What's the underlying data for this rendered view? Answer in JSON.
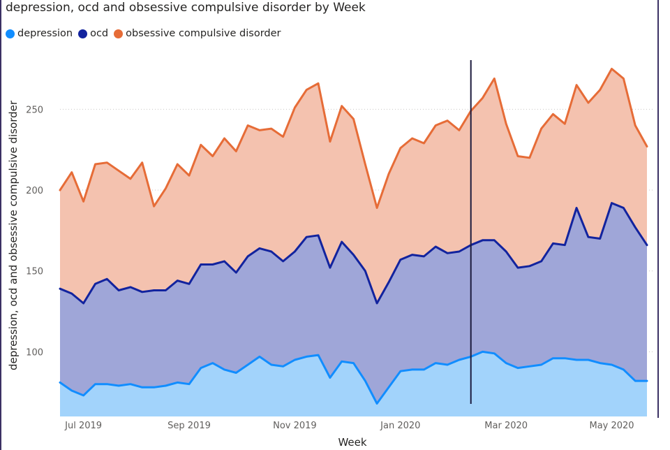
{
  "colors": {
    "depression": "#118dff",
    "depression_fill": "#a2d3fb",
    "ocd": "#12239e",
    "ocd_fill": "#9fa6d8",
    "obsessive": "#e66c37",
    "obsessive_fill": "#f4c2af"
  },
  "chart_data": {
    "type": "area",
    "title": "depression, ocd and obsessive compulsive disorder by Week",
    "xlabel": "Week",
    "ylabel": "depression, ocd and obsessive compulsive disorder",
    "ylim": [
      60,
      283
    ],
    "yticks": [
      100,
      150,
      200,
      250
    ],
    "grid": true,
    "legend_position": "top-left",
    "xticks": [
      {
        "label": "Jul 2019",
        "week": 2
      },
      {
        "label": "Sep 2019",
        "week": 11
      },
      {
        "label": "Nov 2019",
        "week": 20
      },
      {
        "label": "Jan 2020",
        "week": 29
      },
      {
        "label": "Mar 2020",
        "week": 38
      },
      {
        "label": "May 2020",
        "week": 47
      }
    ],
    "cursor_week": 35,
    "x_start": "Jun 2019",
    "series": [
      {
        "name": "depression",
        "values": [
          81,
          76,
          73,
          80,
          80,
          79,
          80,
          78,
          78,
          79,
          81,
          80,
          90,
          93,
          89,
          87,
          92,
          97,
          92,
          91,
          95,
          97,
          98,
          84,
          94,
          93,
          82,
          68,
          78,
          88,
          89,
          89,
          93,
          92,
          95,
          97,
          100,
          99,
          93,
          90,
          91,
          92,
          96,
          96,
          95,
          95,
          93,
          92,
          89,
          82,
          82
        ]
      },
      {
        "name": "ocd",
        "values": [
          139,
          136,
          130,
          142,
          145,
          138,
          140,
          137,
          138,
          138,
          144,
          142,
          154,
          154,
          156,
          149,
          159,
          164,
          162,
          156,
          162,
          171,
          172,
          152,
          168,
          160,
          150,
          130,
          143,
          157,
          160,
          159,
          165,
          161,
          162,
          166,
          169,
          169,
          162,
          152,
          153,
          156,
          167,
          166,
          189,
          171,
          170,
          192,
          189,
          177,
          166
        ]
      },
      {
        "name": "obsessive compulsive disorder",
        "values": [
          200,
          211,
          193,
          216,
          217,
          212,
          207,
          217,
          190,
          201,
          216,
          209,
          228,
          221,
          232,
          224,
          240,
          237,
          238,
          233,
          251,
          262,
          266,
          230,
          252,
          244,
          216,
          189,
          210,
          226,
          232,
          229,
          240,
          243,
          237,
          249,
          257,
          269,
          241,
          221,
          220,
          238,
          247,
          241,
          265,
          254,
          262,
          275,
          269,
          240,
          227
        ]
      }
    ]
  }
}
